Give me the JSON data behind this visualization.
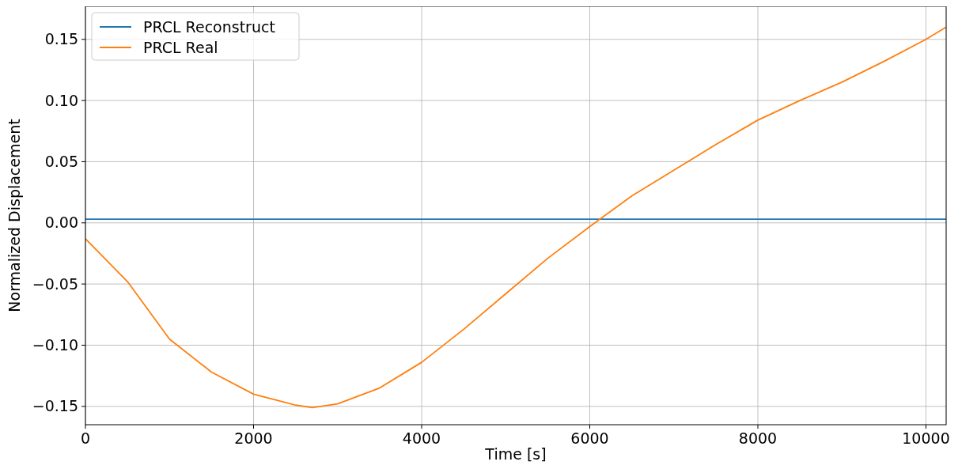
{
  "chart_data": {
    "type": "line",
    "xlabel": "Time [s]",
    "ylabel": "Normalized Displacement",
    "xlim": [
      0,
      10240
    ],
    "xticks": [
      0,
      2000,
      4000,
      6000,
      8000,
      10000
    ],
    "ylim": [
      -0.165,
      0.177
    ],
    "yticks": [
      {
        "value": -0.15,
        "label": "−0.15"
      },
      {
        "value": -0.1,
        "label": "−0.10"
      },
      {
        "value": -0.05,
        "label": "−0.05"
      },
      {
        "value": 0,
        "label": "0.00"
      },
      {
        "value": 0.05,
        "label": "0.05"
      },
      {
        "value": 0.1,
        "label": "0.10"
      },
      {
        "value": 0.15,
        "label": "0.15"
      }
    ],
    "grid": true,
    "legend": "top left",
    "series": [
      {
        "name": "PRCL Reconstruct",
        "color": "#1f77b4",
        "x": [
          0,
          10240
        ],
        "values": [
          0.003,
          0.003
        ]
      },
      {
        "name": "PRCL Real",
        "color": "#ff7f0e",
        "x": [
          0,
          500,
          1000,
          1500,
          2000,
          2500,
          2700,
          3000,
          3500,
          4000,
          4500,
          5000,
          5500,
          6000,
          6100,
          6500,
          7000,
          7500,
          8000,
          8500,
          9000,
          9500,
          10000,
          10240
        ],
        "values": [
          -0.013,
          -0.048,
          -0.095,
          -0.122,
          -0.14,
          -0.149,
          -0.151,
          -0.148,
          -0.135,
          -0.114,
          -0.087,
          -0.058,
          -0.029,
          -0.003,
          0.002,
          0.022,
          0.043,
          0.064,
          0.084,
          0.1,
          0.115,
          0.132,
          0.15,
          0.16
        ]
      }
    ]
  }
}
